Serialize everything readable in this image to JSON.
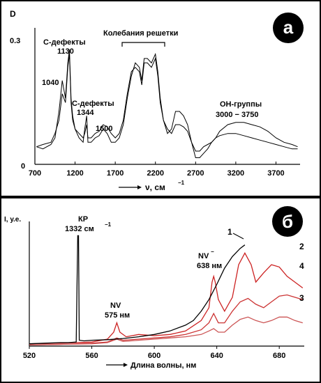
{
  "chart_data": [
    {
      "type": "line",
      "panel_label": "а",
      "ylabel": "D",
      "xlabel": "ν, см",
      "xlabel_exp": "−1",
      "xlim": [
        700,
        4000
      ],
      "ylim": [
        0,
        0.3
      ],
      "xticks": [
        "700",
        "1200",
        "1700",
        "2200",
        "2700",
        "3200",
        "3700"
      ],
      "xtick_values": [
        700,
        1200,
        1700,
        2200,
        2700,
        3200,
        3700
      ],
      "yticks": [
        "0",
        "0.3"
      ],
      "ytick_values": [
        0,
        0.3
      ],
      "annotations": {
        "c_defects_1130": [
          "С-дефекты",
          "1130"
        ],
        "label_1040": "1040",
        "c_defects_1344": [
          "С-дефекты",
          "1344"
        ],
        "label_1600": "1600",
        "lattice": "Колебания решетки",
        "oh_groups": [
          "ОН-группы",
          "3000 − 3750"
        ]
      },
      "series": [
        {
          "x": [
            720,
            800,
            900,
            950,
            1000,
            1040,
            1080,
            1110,
            1130,
            1150,
            1170,
            1200,
            1250,
            1300,
            1320,
            1344,
            1360,
            1400,
            1450,
            1500,
            1550,
            1600,
            1650,
            1700,
            1750,
            1800,
            1850,
            1900,
            1950,
            2000,
            2030,
            2060,
            2100,
            2150,
            2200,
            2230,
            2260,
            2300,
            2350,
            2400,
            2450,
            2500,
            2550,
            2600,
            2650,
            2700,
            2750,
            2800,
            2850,
            2900,
            2950,
            3000,
            3100,
            3200,
            3300,
            3400,
            3500,
            3600,
            3700,
            3800,
            3900,
            3970
          ],
          "y": [
            0.04,
            0.035,
            0.045,
            0.06,
            0.12,
            0.19,
            0.15,
            0.23,
            0.26,
            0.15,
            0.11,
            0.08,
            0.06,
            0.05,
            0.08,
            0.11,
            0.05,
            0.05,
            0.06,
            0.065,
            0.08,
            0.07,
            0.05,
            0.05,
            0.06,
            0.09,
            0.15,
            0.2,
            0.23,
            0.22,
            0.19,
            0.24,
            0.24,
            0.23,
            0.25,
            0.21,
            0.15,
            0.1,
            0.07,
            0.08,
            0.12,
            0.12,
            0.11,
            0.09,
            0.05,
            0.015,
            0.015,
            0.025,
            0.035,
            0.05,
            0.06,
            0.075,
            0.09,
            0.095,
            0.095,
            0.09,
            0.085,
            0.075,
            0.06,
            0.05,
            0.045,
            0.04
          ]
        },
        {
          "x": [
            720,
            800,
            900,
            950,
            1000,
            1040,
            1080,
            1110,
            1130,
            1150,
            1170,
            1200,
            1250,
            1300,
            1320,
            1344,
            1360,
            1400,
            1450,
            1500,
            1550,
            1600,
            1650,
            1700,
            1750,
            1800,
            1850,
            1900,
            1950,
            2000,
            2030,
            2060,
            2100,
            2150,
            2200,
            2230,
            2260,
            2300,
            2350,
            2400,
            2450,
            2500,
            2550,
            2600,
            2650,
            2700,
            2750,
            2800,
            2850,
            2900,
            2950,
            3000,
            3100,
            3200,
            3300,
            3400,
            3500,
            3600,
            3700,
            3800,
            3900,
            3970
          ],
          "y": [
            0.04,
            0.045,
            0.05,
            0.07,
            0.1,
            0.16,
            0.14,
            0.22,
            0.25,
            0.14,
            0.1,
            0.08,
            0.07,
            0.06,
            0.07,
            0.09,
            0.06,
            0.06,
            0.07,
            0.075,
            0.09,
            0.085,
            0.07,
            0.06,
            0.07,
            0.1,
            0.16,
            0.21,
            0.22,
            0.21,
            0.18,
            0.23,
            0.23,
            0.22,
            0.24,
            0.2,
            0.14,
            0.1,
            0.08,
            0.07,
            0.09,
            0.09,
            0.085,
            0.075,
            0.05,
            0.03,
            0.03,
            0.04,
            0.045,
            0.05,
            0.06,
            0.065,
            0.07,
            0.07,
            0.065,
            0.06,
            0.055,
            0.05,
            0.045,
            0.04,
            0.035,
            0.035
          ]
        }
      ]
    },
    {
      "type": "line",
      "panel_label": "б",
      "ylabel": "I, у.е.",
      "xlabel": "Длина волны, нм",
      "xlim": [
        520,
        696
      ],
      "xticks": [
        "520",
        "560",
        "600",
        "640",
        "680"
      ],
      "xtick_values": [
        520,
        560,
        600,
        640,
        680
      ],
      "annotations": {
        "raman": [
          "КР",
          "1332 см",
          "−1"
        ],
        "nv0": [
          "NV",
          "575 нм"
        ],
        "nvminus": [
          "NV",
          "−",
          "638 нм"
        ]
      },
      "series": [
        {
          "name": "1",
          "color": "#000000",
          "x": [
            520,
            530,
            540,
            545,
            550,
            551,
            551.5,
            552,
            555,
            560,
            570,
            580,
            590,
            600,
            610,
            620,
            625,
            630,
            635,
            640,
            645,
            650,
            655,
            658
          ],
          "y": [
            0.02,
            0.025,
            0.03,
            0.03,
            0.035,
            0.95,
            0.95,
            0.05,
            0.045,
            0.05,
            0.055,
            0.065,
            0.08,
            0.1,
            0.13,
            0.18,
            0.22,
            0.3,
            0.4,
            0.53,
            0.67,
            0.77,
            0.84,
            0.87
          ]
        },
        {
          "name": "2",
          "color": "#cc2222",
          "x": [
            520,
            540,
            550,
            560,
            570,
            574,
            576,
            578,
            582,
            590,
            600,
            610,
            620,
            630,
            635,
            637,
            638,
            639,
            641,
            645,
            650,
            654,
            658,
            662,
            665,
            670,
            675,
            680,
            685,
            690,
            695
          ],
          "y": [
            0.02,
            0.025,
            0.03,
            0.035,
            0.06,
            0.12,
            0.2,
            0.12,
            0.08,
            0.1,
            0.09,
            0.1,
            0.13,
            0.22,
            0.33,
            0.55,
            0.6,
            0.55,
            0.4,
            0.3,
            0.42,
            0.7,
            0.8,
            0.7,
            0.55,
            0.63,
            0.7,
            0.68,
            0.6,
            0.55,
            0.5
          ]
        },
        {
          "name": "3",
          "color": "#cc5555",
          "x": [
            520,
            540,
            560,
            570,
            576,
            580,
            590,
            600,
            610,
            620,
            630,
            635,
            638,
            641,
            645,
            650,
            655,
            660,
            665,
            670,
            675,
            680,
            685,
            690,
            695
          ],
          "y": [
            0.01,
            0.015,
            0.02,
            0.03,
            0.06,
            0.04,
            0.05,
            0.06,
            0.07,
            0.08,
            0.1,
            0.13,
            0.15,
            0.12,
            0.12,
            0.18,
            0.23,
            0.25,
            0.22,
            0.2,
            0.22,
            0.25,
            0.25,
            0.22,
            0.2
          ]
        },
        {
          "name": "4",
          "color": "#cc3333",
          "x": [
            520,
            540,
            560,
            570,
            576,
            580,
            590,
            600,
            610,
            620,
            630,
            635,
            638,
            641,
            645,
            650,
            655,
            660,
            665,
            670,
            675,
            680,
            685,
            690,
            695
          ],
          "y": [
            0.01,
            0.015,
            0.025,
            0.035,
            0.07,
            0.05,
            0.06,
            0.07,
            0.08,
            0.1,
            0.14,
            0.2,
            0.28,
            0.2,
            0.2,
            0.3,
            0.38,
            0.41,
            0.36,
            0.33,
            0.38,
            0.43,
            0.44,
            0.42,
            0.4
          ]
        }
      ]
    }
  ]
}
